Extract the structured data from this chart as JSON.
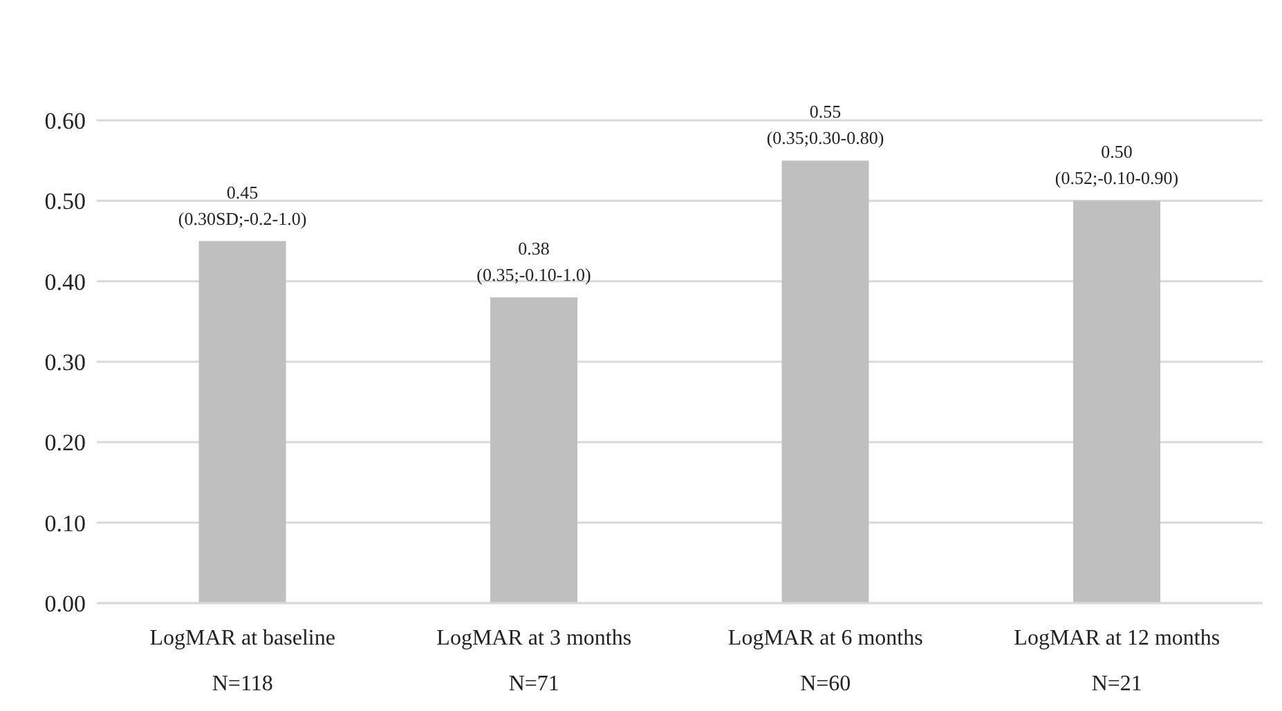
{
  "chart_data": {
    "type": "bar",
    "categories": [
      "LogMAR at baseline",
      "LogMAR at 3 months",
      "LogMAR at 6 months",
      "LogMAR at 12 months"
    ],
    "values": [
      0.45,
      0.38,
      0.55,
      0.5
    ],
    "value_labels": [
      "0.45\n(0.30SD;-0.2-1.0)",
      "0.38\n(0.35;-0.10-1.0)",
      "0.55\n(0.35;0.30-0.80)",
      "0.50\n(0.52;-0.10-0.90)"
    ],
    "color": "#bfbfbf",
    "ylim": [
      0,
      0.6
    ],
    "yticks": [
      {
        "value": 0,
        "label": "0.00"
      },
      {
        "value": 0.1,
        "label": "0.10"
      },
      {
        "value": 0.2,
        "label": "0.20"
      },
      {
        "value": 0.3,
        "label": "0.30"
      },
      {
        "value": 0.4,
        "label": "0.40"
      },
      {
        "value": 0.5,
        "label": "0.50"
      },
      {
        "value": 0.6,
        "label": "0.60"
      }
    ],
    "grid": "y",
    "annotations": [
      "N=118",
      "N=71",
      "N=60",
      "N=21"
    ]
  }
}
